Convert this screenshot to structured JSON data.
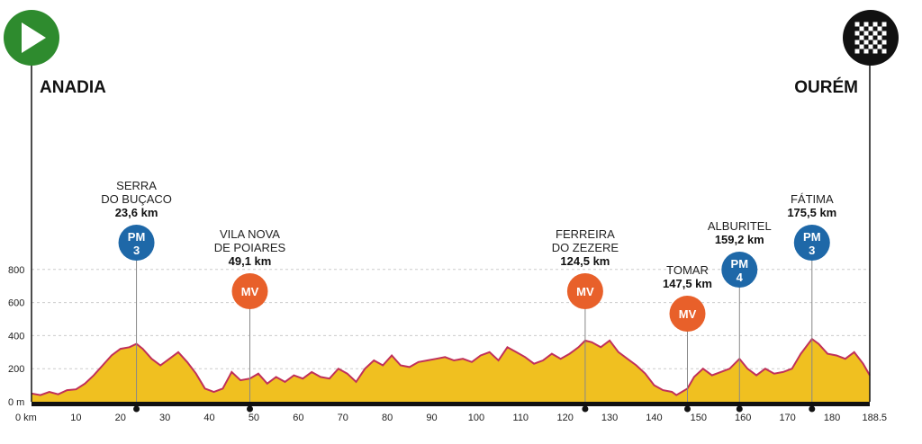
{
  "chart_data": {
    "type": "area",
    "start": {
      "name": "ANADIA",
      "icon": "play-icon",
      "color": "#2e8b2e"
    },
    "finish": {
      "name": "OURÉM",
      "icon": "checkered-flag-icon",
      "color": "#111111"
    },
    "xlim": [
      0,
      188.5
    ],
    "ylim": [
      0,
      900
    ],
    "x_ticks": [
      "0 km",
      "10",
      "20",
      "30",
      "40",
      "50",
      "60",
      "70",
      "80",
      "90",
      "100",
      "110",
      "120",
      "130",
      "140",
      "150",
      "160",
      "170",
      "180",
      "188.5"
    ],
    "x_tick_values": [
      0,
      10,
      20,
      30,
      40,
      50,
      60,
      70,
      80,
      90,
      100,
      110,
      120,
      130,
      140,
      150,
      160,
      170,
      180,
      188.5
    ],
    "y_ticks": [
      "0 m",
      "200",
      "400",
      "600",
      "800"
    ],
    "y_tick_values": [
      0,
      200,
      400,
      600,
      800
    ],
    "grid": true,
    "fill_color": "#f0c020",
    "line_color": "#c0305a",
    "profile": {
      "x": [
        0,
        2,
        4,
        6,
        8,
        10,
        12,
        14,
        16,
        18,
        20,
        22,
        23.6,
        25,
        27,
        29,
        31,
        33,
        35,
        37,
        39,
        41,
        43,
        45,
        47,
        49.1,
        51,
        53,
        55,
        57,
        59,
        61,
        63,
        65,
        67,
        69,
        71,
        73,
        75,
        77,
        79,
        81,
        83,
        85,
        87,
        89,
        91,
        93,
        95,
        97,
        99,
        101,
        103,
        105,
        107,
        109,
        111,
        113,
        115,
        117,
        119,
        121,
        123,
        124.5,
        126,
        128,
        130,
        132,
        134,
        136,
        138,
        140,
        142,
        144,
        145,
        147.5,
        149,
        151,
        153,
        155,
        157,
        159.2,
        161,
        163,
        165,
        167,
        169,
        171,
        173,
        175.5,
        177,
        179,
        181,
        183,
        185,
        187,
        188.5
      ],
      "y": [
        50,
        40,
        60,
        45,
        70,
        75,
        110,
        160,
        220,
        280,
        320,
        330,
        350,
        320,
        260,
        220,
        260,
        300,
        240,
        170,
        80,
        60,
        80,
        180,
        130,
        140,
        170,
        110,
        150,
        120,
        160,
        140,
        180,
        150,
        140,
        200,
        170,
        120,
        200,
        250,
        220,
        280,
        220,
        210,
        240,
        250,
        260,
        270,
        250,
        260,
        240,
        280,
        300,
        250,
        330,
        300,
        270,
        230,
        250,
        290,
        260,
        290,
        330,
        370,
        360,
        330,
        370,
        300,
        260,
        220,
        170,
        100,
        70,
        60,
        40,
        80,
        150,
        200,
        160,
        180,
        200,
        260,
        200,
        160,
        200,
        170,
        180,
        200,
        290,
        380,
        350,
        290,
        280,
        260,
        300,
        230,
        160
      ]
    },
    "points": [
      {
        "km": 23.6,
        "alt": 350,
        "code": "PM",
        "cat": "3",
        "color": "#1e68a8",
        "name_lines": [
          "SERRA",
          "DO BUÇACO"
        ],
        "km_label": "23,6 km"
      },
      {
        "km": 49.1,
        "alt": 140,
        "code": "MV",
        "cat": "",
        "color": "#e8602a",
        "name_lines": [
          "VILA NOVA",
          "DE POIARES"
        ],
        "km_label": "49,1 km"
      },
      {
        "km": 124.5,
        "alt": 370,
        "code": "MV",
        "cat": "",
        "color": "#e8602a",
        "name_lines": [
          "FERREIRA",
          "DO ZEZERE"
        ],
        "km_label": "124,5 km"
      },
      {
        "km": 147.5,
        "alt": 80,
        "code": "MV",
        "cat": "",
        "color": "#e8602a",
        "name_lines": [
          "TOMAR"
        ],
        "km_label": "147,5 km"
      },
      {
        "km": 159.2,
        "alt": 260,
        "code": "PM",
        "cat": "4",
        "color": "#1e68a8",
        "name_lines": [
          "ALBURITEL"
        ],
        "km_label": "159,2 km"
      },
      {
        "km": 175.5,
        "alt": 380,
        "code": "PM",
        "cat": "3",
        "color": "#1e68a8",
        "name_lines": [
          "FÁTIMA"
        ],
        "km_label": "175,5 km"
      }
    ]
  }
}
